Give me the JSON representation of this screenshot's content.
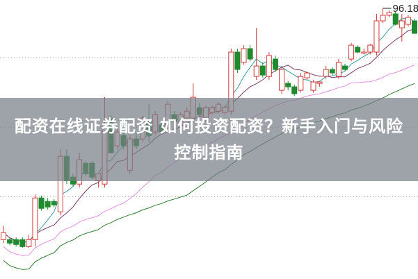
{
  "banner": {
    "title": "配资在线证券配资 如何投资配资？新手入门与风险控制指南"
  },
  "chart_data": {
    "type": "candlestick",
    "title": "",
    "xlabel": "",
    "ylabel": "",
    "ylim": [
      72.8,
      96.9
    ],
    "grid": {
      "horizontal": true,
      "style": "dotted",
      "values": [
        91.92,
        85.92,
        79.92
      ]
    },
    "up_color": "#d23a3a",
    "down_color": "#1f8a2e",
    "high_annotation": {
      "label": "96.18",
      "value": 96.18,
      "candle_index": 60
    },
    "moving_averages": [
      {
        "period": 5,
        "color": "#3a9a9a"
      },
      {
        "period": 10,
        "color": "#7a3a6a"
      },
      {
        "period": 20,
        "color": "#e090e0"
      },
      {
        "period": 30,
        "color": "#2e7a2e"
      }
    ],
    "ohlc": [
      [
        76.2,
        77.4,
        75.9,
        76.8
      ],
      [
        76.2,
        76.4,
        75.7,
        75.9
      ],
      [
        76.2,
        76.4,
        75.6,
        75.78
      ],
      [
        76.2,
        76.4,
        75.5,
        75.6
      ],
      [
        75.6,
        76.6,
        75.5,
        76.2
      ],
      [
        76.2,
        80.1,
        75.6,
        79.8
      ],
      [
        79.8,
        80.0,
        78.7,
        78.9
      ],
      [
        79.5,
        79.8,
        78.8,
        79.02
      ],
      [
        79.5,
        79.7,
        79.0,
        79.2
      ],
      [
        78.6,
        84.0,
        78.3,
        83.4
      ],
      [
        83.4,
        84.0,
        81.0,
        81.3
      ],
      [
        81.6,
        81.9,
        80.8,
        81.0
      ],
      [
        81.0,
        83.7,
        80.7,
        83.1
      ],
      [
        82.8,
        83.0,
        81.7,
        81.9
      ],
      [
        82.8,
        83.0,
        81.4,
        81.6
      ],
      [
        81.3,
        81.7,
        80.7,
        81.9
      ],
      [
        81.0,
        88.5,
        80.7,
        86.1
      ],
      [
        86.7,
        87.0,
        83.7,
        83.7
      ],
      [
        84.3,
        85.8,
        84.0,
        85.5
      ],
      [
        85.2,
        85.4,
        84.0,
        84.3
      ],
      [
        82.2,
        85.2,
        81.9,
        84.9
      ],
      [
        84.9,
        85.5,
        84.0,
        84.3
      ],
      [
        84.9,
        86.9,
        84.6,
        86.7
      ],
      [
        86.4,
        87.9,
        84.6,
        85.2
      ],
      [
        85.5,
        87.3,
        85.2,
        87.0
      ],
      [
        86.1,
        86.4,
        85.3,
        85.5
      ],
      [
        86.1,
        88.2,
        85.8,
        87.9
      ],
      [
        87.0,
        87.3,
        86.2,
        86.4
      ],
      [
        86.1,
        87.2,
        85.8,
        87.0
      ],
      [
        86.7,
        87.6,
        86.4,
        87.3
      ],
      [
        86.7,
        89.7,
        86.4,
        88.5
      ],
      [
        87.6,
        88.0,
        86.8,
        87.0
      ],
      [
        86.7,
        87.8,
        86.4,
        87.6
      ],
      [
        87.18,
        87.8,
        87.0,
        87.6
      ],
      [
        87.3,
        88.1,
        87.1,
        87.9
      ],
      [
        87.18,
        87.8,
        87.0,
        87.6
      ],
      [
        87.3,
        92.7,
        87.0,
        92.4
      ],
      [
        92.4,
        92.7,
        90.6,
        90.9
      ],
      [
        91.5,
        93.0,
        91.3,
        92.7
      ],
      [
        92.7,
        93.0,
        91.6,
        91.8
      ],
      [
        90.3,
        94.5,
        90.0,
        91.2
      ],
      [
        91.2,
        91.5,
        90.2,
        90.42
      ],
      [
        90.3,
        92.4,
        90.0,
        92.1
      ],
      [
        91.8,
        92.1,
        90.7,
        90.9
      ],
      [
        89.1,
        91.2,
        88.8,
        90.9
      ],
      [
        89.7,
        89.9,
        89.1,
        89.4
      ],
      [
        89.4,
        89.6,
        88.6,
        88.8
      ],
      [
        89.1,
        90.6,
        88.9,
        90.3
      ],
      [
        90.18,
        90.7,
        90.0,
        90.6
      ],
      [
        89.1,
        90.0,
        88.9,
        89.82
      ],
      [
        89.7,
        89.9,
        89.4,
        89.82
      ],
      [
        90.3,
        91.2,
        90.1,
        90.9
      ],
      [
        90.9,
        91.1,
        90.4,
        90.6
      ],
      [
        90.3,
        91.8,
        90.1,
        91.5
      ],
      [
        91.2,
        91.4,
        90.8,
        90.9
      ],
      [
        91.8,
        93.2,
        91.6,
        93.0
      ],
      [
        92.82,
        93.0,
        92.3,
        92.4
      ],
      [
        92.4,
        92.7,
        92.2,
        92.4
      ],
      [
        92.4,
        93.1,
        92.2,
        93.0
      ],
      [
        92.4,
        95.7,
        92.1,
        95.1
      ],
      [
        95.1,
        96.18,
        94.9,
        95.58
      ],
      [
        95.58,
        96.0,
        95.4,
        95.82
      ],
      [
        95.7,
        95.9,
        94.7,
        94.8
      ],
      [
        94.5,
        95.7,
        93.3,
        95.1
      ],
      [
        94.8,
        95.6,
        94.6,
        95.4
      ],
      [
        95.1,
        95.3,
        94.0,
        94.02
      ]
    ]
  }
}
